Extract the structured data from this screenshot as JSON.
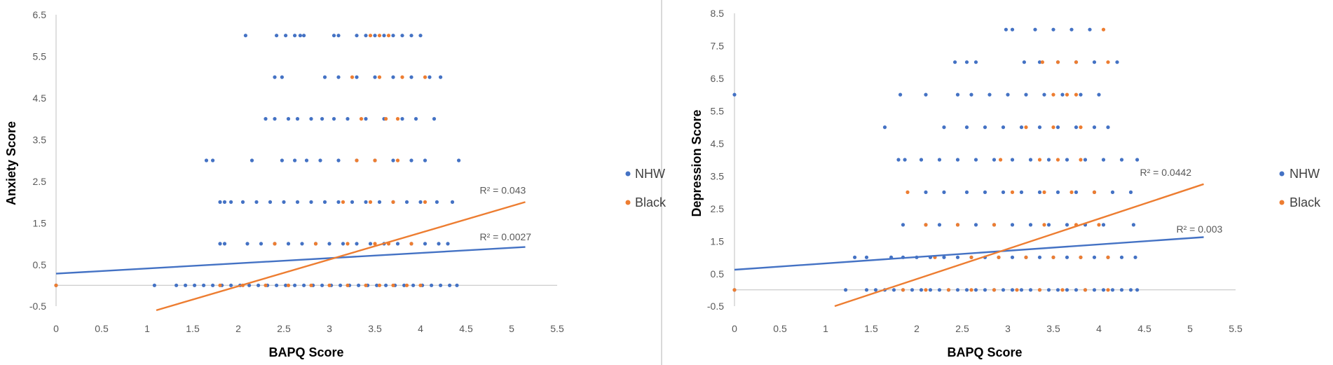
{
  "colors": {
    "nhw": "#4472C4",
    "black": "#ED7D31",
    "axis": "#BFBFBF",
    "divider": "#D9D9D9"
  },
  "chart_data": [
    {
      "type": "scatter",
      "xlabel": "BAPQ Score",
      "ylabel": "Anxiety Score",
      "xlim": [
        0,
        5.5
      ],
      "ylim": [
        -0.5,
        6.5
      ],
      "x_ticks": [
        "0",
        "0.5",
        "1",
        "1.5",
        "2",
        "2.5",
        "3",
        "3.5",
        "4",
        "4.5",
        "5",
        "5.5"
      ],
      "y_ticks": [
        "6.5",
        "5.5",
        "4.5",
        "3.5",
        "2.5",
        "1.5",
        "0.5",
        "-0.5"
      ],
      "legend": "right",
      "series": [
        {
          "name": "NHW",
          "color": "#4472C4",
          "levels": [
            {
              "y": 6,
              "x": [
                2.08,
                2.42,
                2.52,
                2.62,
                2.68,
                2.72,
                3.05,
                3.1,
                3.3,
                3.4,
                3.5,
                3.6,
                3.7,
                3.8,
                3.9,
                4.0
              ]
            },
            {
              "y": 5,
              "x": [
                2.4,
                2.48,
                2.95,
                3.1,
                3.3,
                3.5,
                3.7,
                3.9,
                4.1,
                4.22
              ]
            },
            {
              "y": 4,
              "x": [
                2.3,
                2.4,
                2.55,
                2.65,
                2.8,
                2.92,
                3.05,
                3.2,
                3.4,
                3.6,
                3.8,
                3.95,
                4.15
              ]
            },
            {
              "y": 3,
              "x": [
                1.65,
                1.72,
                2.15,
                2.48,
                2.62,
                2.75,
                2.9,
                3.1,
                3.3,
                3.5,
                3.7,
                3.9,
                4.05,
                4.42
              ]
            },
            {
              "y": 2,
              "x": [
                1.8,
                1.85,
                1.92,
                2.05,
                2.2,
                2.35,
                2.5,
                2.65,
                2.8,
                2.95,
                3.1,
                3.25,
                3.4,
                3.55,
                3.7,
                3.85,
                4.0,
                4.18,
                4.35
              ]
            },
            {
              "y": 1,
              "x": [
                1.8,
                1.85,
                2.1,
                2.25,
                2.4,
                2.55,
                2.7,
                2.85,
                3.0,
                3.15,
                3.3,
                3.45,
                3.6,
                3.75,
                3.9,
                4.05,
                4.2,
                4.3
              ]
            },
            {
              "y": 0,
              "x": [
                0,
                1.08,
                1.32,
                1.42,
                1.52,
                1.62,
                1.72,
                1.82,
                1.92,
                2.02,
                2.12,
                2.22,
                2.32,
                2.42,
                2.52,
                2.62,
                2.72,
                2.82,
                2.92,
                3.02,
                3.12,
                3.22,
                3.32,
                3.42,
                3.52,
                3.62,
                3.72,
                3.82,
                3.92,
                4.02,
                4.12,
                4.22,
                4.32,
                4.4
              ]
            }
          ]
        },
        {
          "name": "Black",
          "color": "#ED7D31",
          "levels": [
            {
              "y": 6,
              "x": [
                3.45,
                3.55,
                3.65
              ]
            },
            {
              "y": 5,
              "x": [
                3.25,
                3.55,
                3.8,
                4.05
              ]
            },
            {
              "y": 4,
              "x": [
                3.35,
                3.62,
                3.75
              ]
            },
            {
              "y": 3,
              "x": [
                3.3,
                3.5,
                3.75
              ]
            },
            {
              "y": 2,
              "x": [
                3.15,
                3.45,
                3.7,
                4.05
              ]
            },
            {
              "y": 1,
              "x": [
                2.4,
                2.85,
                3.2,
                3.5,
                3.65,
                3.9
              ]
            },
            {
              "y": 0,
              "x": [
                0,
                1.8,
                2.05,
                2.3,
                2.55,
                2.8,
                3.0,
                3.2,
                3.4,
                3.55,
                3.7,
                3.85,
                4.0
              ]
            }
          ]
        }
      ],
      "trendlines": [
        {
          "series": "NHW",
          "x": [
            0,
            5.15
          ],
          "y": [
            0.28,
            0.92
          ],
          "label": "R² = 0.0027",
          "label_x": 4.65,
          "label_y": 1.08
        },
        {
          "series": "Black",
          "x": [
            1.1,
            5.15
          ],
          "y": [
            -0.6,
            2.0
          ],
          "label": "R² = 0.043",
          "label_x": 4.65,
          "label_y": 2.2
        }
      ]
    },
    {
      "type": "scatter",
      "xlabel": "BAPQ Score",
      "ylabel": "Depression Score",
      "xlim": [
        0,
        5.5
      ],
      "ylim": [
        -0.5,
        8.5
      ],
      "x_ticks": [
        "0",
        "0.5",
        "1",
        "1.5",
        "2",
        "2.5",
        "3",
        "3.5",
        "4",
        "4.5",
        "5",
        "5.5"
      ],
      "y_ticks": [
        "8.5",
        "7.5",
        "6.5",
        "5.5",
        "4.5",
        "3.5",
        "2.5",
        "1.5",
        "0.5",
        "-0.5"
      ],
      "legend": "right",
      "series": [
        {
          "name": "NHW",
          "color": "#4472C4",
          "levels": [
            {
              "y": 8,
              "x": [
                2.98,
                3.05,
                3.3,
                3.5,
                3.7,
                3.9
              ]
            },
            {
              "y": 7,
              "x": [
                2.42,
                2.55,
                2.65,
                3.18,
                3.35,
                3.55,
                3.75,
                3.95,
                4.2
              ]
            },
            {
              "y": 6,
              "x": [
                0,
                1.82,
                2.1,
                2.45,
                2.6,
                2.8,
                3.0,
                3.2,
                3.4,
                3.6,
                3.8,
                4.0
              ]
            },
            {
              "y": 5,
              "x": [
                1.65,
                2.3,
                2.55,
                2.75,
                2.95,
                3.15,
                3.35,
                3.55,
                3.75,
                3.95,
                4.1
              ]
            },
            {
              "y": 4,
              "x": [
                1.8,
                1.87,
                2.05,
                2.25,
                2.45,
                2.65,
                2.85,
                3.05,
                3.25,
                3.45,
                3.65,
                3.85,
                4.05,
                4.25,
                4.42
              ]
            },
            {
              "y": 3,
              "x": [
                2.1,
                2.3,
                2.55,
                2.75,
                2.95,
                3.15,
                3.35,
                3.55,
                3.75,
                3.95,
                4.15,
                4.35
              ]
            },
            {
              "y": 2,
              "x": [
                1.85,
                2.1,
                2.25,
                2.45,
                2.65,
                2.85,
                3.05,
                3.25,
                3.45,
                3.65,
                3.85,
                4.05,
                4.38
              ]
            },
            {
              "y": 1,
              "x": [
                1.32,
                1.45,
                1.72,
                1.85,
                2.0,
                2.15,
                2.3,
                2.45,
                2.6,
                2.75,
                2.9,
                3.05,
                3.2,
                3.35,
                3.5,
                3.65,
                3.8,
                3.95,
                4.1,
                4.25,
                4.4
              ]
            },
            {
              "y": 0,
              "x": [
                0,
                1.22,
                1.45,
                1.55,
                1.65,
                1.75,
                1.85,
                1.95,
                2.05,
                2.15,
                2.25,
                2.35,
                2.45,
                2.55,
                2.65,
                2.75,
                2.85,
                2.95,
                3.05,
                3.15,
                3.25,
                3.35,
                3.45,
                3.55,
                3.65,
                3.75,
                3.85,
                3.95,
                4.05,
                4.15,
                4.25,
                4.35,
                4.42
              ]
            }
          ]
        },
        {
          "name": "Black",
          "color": "#ED7D31",
          "levels": [
            {
              "y": 8,
              "x": [
                4.05
              ]
            },
            {
              "y": 7,
              "x": [
                3.38,
                3.55,
                3.75,
                4.1
              ]
            },
            {
              "y": 6,
              "x": [
                3.5,
                3.65,
                3.75
              ]
            },
            {
              "y": 5,
              "x": [
                3.2,
                3.5,
                3.8
              ]
            },
            {
              "y": 4,
              "x": [
                2.92,
                3.35,
                3.55,
                3.8
              ]
            },
            {
              "y": 3,
              "x": [
                1.9,
                3.05,
                3.4,
                3.7,
                3.95
              ]
            },
            {
              "y": 2,
              "x": [
                2.1,
                2.45,
                2.85,
                3.4,
                3.75,
                4.0
              ]
            },
            {
              "y": 1,
              "x": [
                2.2,
                2.6,
                2.9,
                3.2,
                3.5,
                3.8,
                4.1
              ]
            },
            {
              "y": 0,
              "x": [
                0,
                1.85,
                2.1,
                2.35,
                2.6,
                2.85,
                3.1,
                3.35,
                3.6,
                3.85,
                4.1
              ]
            }
          ]
        }
      ],
      "trendlines": [
        {
          "series": "NHW",
          "x": [
            0,
            5.15
          ],
          "y": [
            0.62,
            1.62
          ],
          "label": "R² = 0.003",
          "label_x": 4.85,
          "label_y": 1.76
        },
        {
          "series": "Black",
          "x": [
            1.1,
            5.15
          ],
          "y": [
            -0.5,
            3.25
          ],
          "label": "R² = 0.0442",
          "label_x": 4.45,
          "label_y": 3.5
        }
      ]
    }
  ]
}
